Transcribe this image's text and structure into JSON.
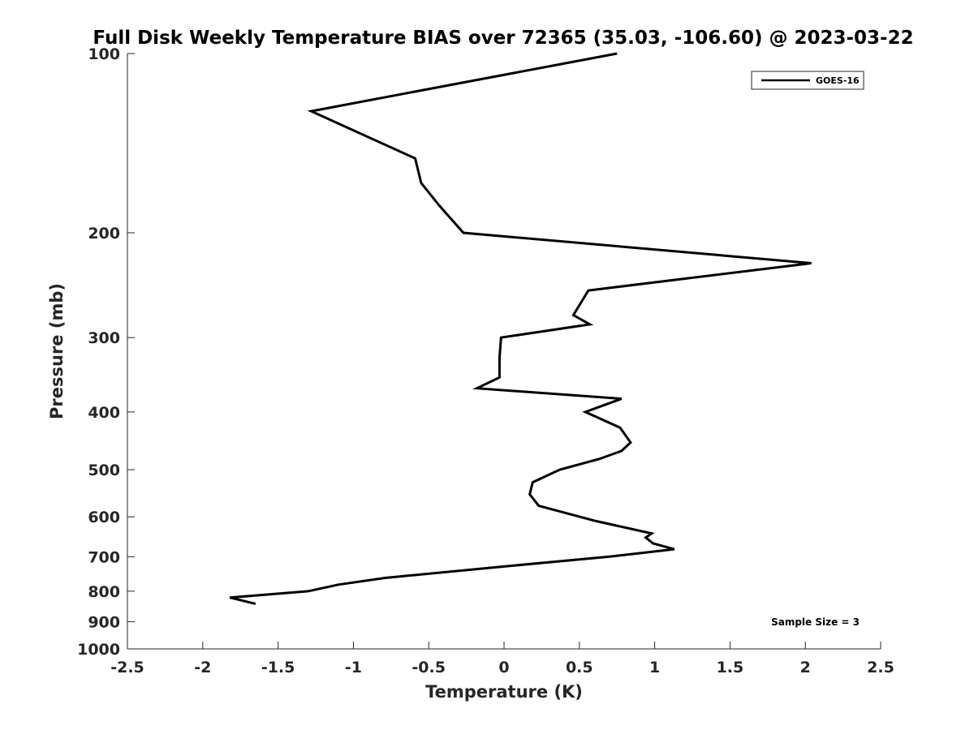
{
  "chart_data": {
    "type": "line",
    "title": "Full Disk Weekly Temperature BIAS over 72365 (35.03, -106.60) @ 2023-03-22",
    "xlabel": "Temperature (K)",
    "ylabel": "Pressure (mb)",
    "xlim": [
      -2.5,
      2.5
    ],
    "ylim": [
      1000,
      100
    ],
    "yscale": "log",
    "y_reversed": true,
    "grid": false,
    "legend_position": "top-right",
    "x_ticks": [
      -2.5,
      -2,
      -1.5,
      -1,
      -0.5,
      0,
      0.5,
      1,
      1.5,
      2,
      2.5
    ],
    "x_tick_labels": [
      "-2.5",
      "-2",
      "-1.5",
      "-1",
      "-0.5",
      "0",
      "0.5",
      "1",
      "1.5",
      "2",
      "2.5"
    ],
    "y_ticks": [
      100,
      200,
      300,
      400,
      500,
      600,
      700,
      800,
      900,
      1000
    ],
    "y_tick_labels": [
      "100",
      "200",
      "300",
      "400",
      "500",
      "600",
      "700",
      "800",
      "900",
      "1000"
    ],
    "series": [
      {
        "name": "GOES-16",
        "color": "#000000",
        "points": [
          {
            "x": 0.75,
            "y": 100
          },
          {
            "x": -1.28,
            "y": 125
          },
          {
            "x": -0.59,
            "y": 150
          },
          {
            "x": -0.55,
            "y": 165
          },
          {
            "x": -0.43,
            "y": 180
          },
          {
            "x": -0.27,
            "y": 200
          },
          {
            "x": 2.04,
            "y": 225
          },
          {
            "x": 0.56,
            "y": 250
          },
          {
            "x": 0.46,
            "y": 275
          },
          {
            "x": 0.57,
            "y": 285
          },
          {
            "x": -0.02,
            "y": 300
          },
          {
            "x": -0.03,
            "y": 325
          },
          {
            "x": -0.03,
            "y": 350
          },
          {
            "x": -0.18,
            "y": 365
          },
          {
            "x": 0.78,
            "y": 380
          },
          {
            "x": 0.54,
            "y": 400
          },
          {
            "x": 0.77,
            "y": 425
          },
          {
            "x": 0.84,
            "y": 450
          },
          {
            "x": 0.78,
            "y": 465
          },
          {
            "x": 0.63,
            "y": 480
          },
          {
            "x": 0.37,
            "y": 500
          },
          {
            "x": 0.19,
            "y": 525
          },
          {
            "x": 0.17,
            "y": 550
          },
          {
            "x": 0.23,
            "y": 575
          },
          {
            "x": 0.61,
            "y": 610
          },
          {
            "x": 0.98,
            "y": 640
          },
          {
            "x": 0.94,
            "y": 650
          },
          {
            "x": 0.99,
            "y": 665
          },
          {
            "x": 1.13,
            "y": 680
          },
          {
            "x": 0.7,
            "y": 700
          },
          {
            "x": 0.05,
            "y": 725
          },
          {
            "x": -0.79,
            "y": 760
          },
          {
            "x": -1.1,
            "y": 780
          },
          {
            "x": -1.3,
            "y": 800
          },
          {
            "x": -1.82,
            "y": 820
          },
          {
            "x": -1.65,
            "y": 840
          }
        ]
      }
    ],
    "annotation": "Sample Size = 3"
  }
}
